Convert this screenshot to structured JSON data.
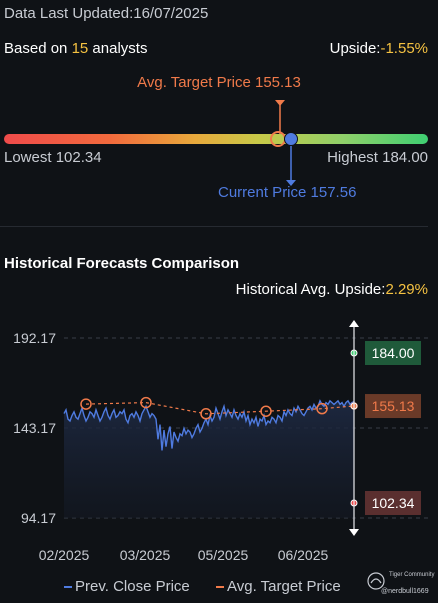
{
  "header": {
    "updated_text": "Data Last Updated:16/07/2025",
    "analysts_prefix": "Based on ",
    "analysts_count": "15",
    "analysts_suffix": " analysts",
    "upside_label": "Upside:",
    "upside_value": "-1.55%"
  },
  "range": {
    "avg_target_label": "Avg. Target Price 155.13",
    "current_label": "Current Price 157.56",
    "lowest_label": "Lowest 102.34",
    "highest_label": "Highest 184.00",
    "low": 102.34,
    "high": 184.0,
    "avg_target": 155.13,
    "current": 157.56
  },
  "history": {
    "title": "Historical Forecasts Comparison",
    "upside_label": "Historical Avg. Upside:",
    "upside_value": "2.29%",
    "legend_prev_close": "Prev. Close Price",
    "legend_avg_target": "Avg. Target Price",
    "watermark_brand": "Tiger Community",
    "watermark_user": "@nerdbull1669"
  },
  "colors": {
    "price_line": "#4f7be0",
    "target_line": "#f07a4a",
    "high_badge": "#1f5a3a",
    "target_badge": "#6a3a28",
    "low_badge": "#5a2f2f"
  },
  "chart_data": {
    "type": "line",
    "ylim": [
      94.17,
      192.17
    ],
    "y_ticks": [
      "192.17",
      "143.17",
      "94.17"
    ],
    "x_ticks": [
      "02/2025",
      "03/2025",
      "05/2025",
      "06/2025"
    ],
    "badges": {
      "high": "184.00",
      "target": "155.13",
      "low": "102.34"
    },
    "series": [
      {
        "name": "Prev. Close Price",
        "x": [
          0,
          2,
          4,
          6,
          8,
          10,
          12,
          14,
          16,
          18,
          20,
          22,
          24,
          26,
          28,
          30,
          32,
          34,
          36,
          38,
          40,
          42,
          44,
          46,
          48,
          50,
          52,
          54,
          56,
          58,
          60,
          62,
          64,
          66,
          68,
          70,
          72,
          74,
          76,
          78,
          80,
          82,
          84,
          86,
          88,
          90,
          92,
          94,
          96,
          98,
          100,
          102,
          104,
          106,
          108,
          110,
          112,
          114,
          116,
          118,
          120,
          122,
          124,
          126,
          128,
          130,
          132,
          134,
          136,
          138,
          140,
          142,
          144,
          146,
          148,
          150,
          152,
          154,
          156,
          158,
          160,
          162,
          164,
          166,
          168,
          170,
          172,
          174,
          176,
          178,
          180,
          182,
          184,
          186,
          188,
          190,
          192,
          194,
          196,
          198,
          200,
          202,
          204,
          206,
          208,
          210,
          212,
          214,
          216,
          218,
          220,
          222,
          224,
          226,
          228,
          230,
          232,
          234,
          236,
          238,
          240,
          242,
          244,
          246,
          248,
          250,
          252,
          254,
          256,
          258,
          260,
          262,
          264,
          266,
          268,
          270,
          272,
          274,
          276,
          278,
          280,
          282,
          284,
          286,
          288,
          290
        ],
        "values": [
          151,
          153,
          148,
          147,
          150,
          152,
          149,
          148,
          151,
          154,
          150,
          147,
          149,
          152,
          151,
          149,
          153,
          150,
          147,
          149,
          152,
          154,
          150,
          148,
          151,
          153,
          149,
          150,
          152,
          151,
          153,
          148,
          146,
          150,
          151,
          149,
          152,
          150,
          147,
          151,
          153,
          155,
          152,
          149,
          151,
          150,
          148,
          137,
          145,
          131,
          142,
          133,
          140,
          144,
          132,
          141,
          138,
          136,
          140,
          139,
          143,
          140,
          142,
          141,
          138,
          140,
          143,
          145,
          141,
          143,
          146,
          148,
          145,
          150,
          147,
          149,
          154,
          151,
          148,
          152,
          155,
          150,
          153,
          151,
          149,
          153,
          150,
          148,
          151,
          149,
          152,
          147,
          150,
          145,
          148,
          146,
          149,
          144,
          148,
          147,
          150,
          145,
          147,
          146,
          149,
          148,
          146,
          150,
          149,
          147,
          152,
          150,
          153,
          151,
          150,
          154,
          152,
          155,
          153,
          151,
          150,
          152,
          154,
          155,
          153,
          156,
          154,
          155,
          158,
          156,
          155,
          157,
          156,
          158,
          157,
          156,
          157,
          158,
          156,
          157,
          155,
          157,
          158,
          156,
          157,
          157.56
        ]
      },
      {
        "name": "Avg. Target Price",
        "x": [
          22,
          82,
          142,
          202,
          258,
          290
        ],
        "values": [
          156.2,
          157.0,
          150.9,
          152.3,
          153.7,
          155.13
        ]
      }
    ]
  }
}
